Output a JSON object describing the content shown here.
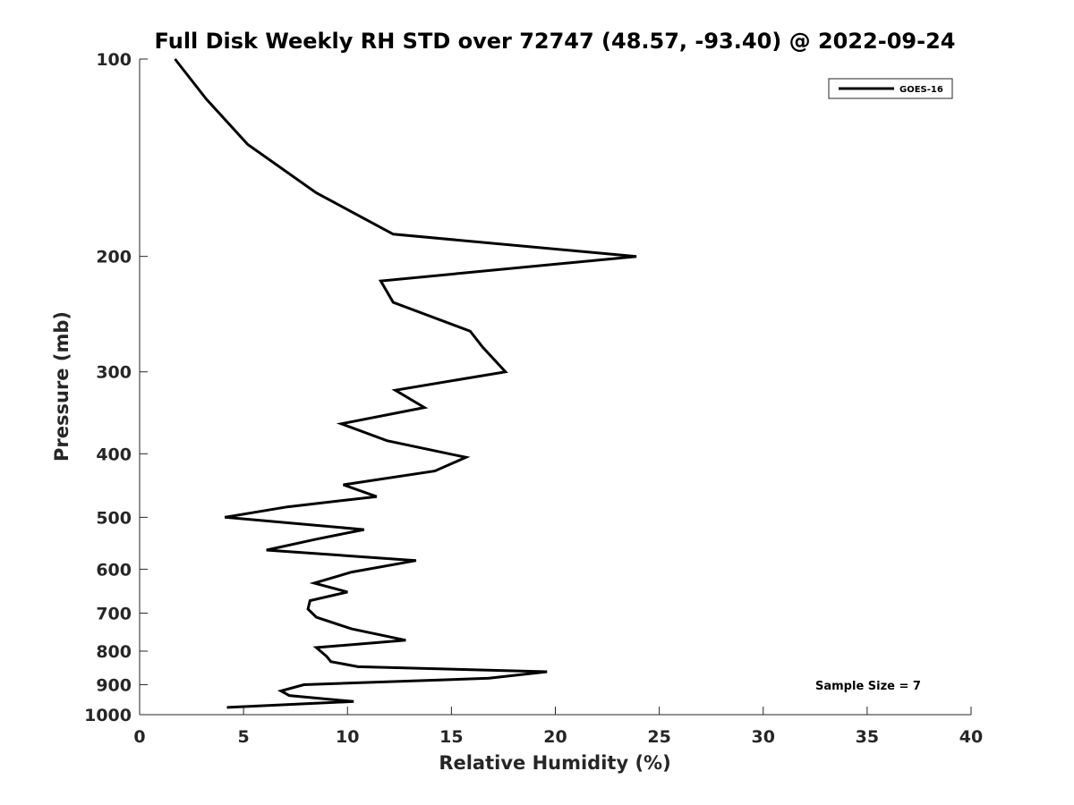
{
  "chart_data": {
    "type": "line",
    "title": "Full Disk Weekly RH STD over 72747 (48.57, -93.40) @ 2022-09-24",
    "xlabel": "Relative Humidity (%)",
    "ylabel": "Pressure (mb)",
    "xlim": [
      0,
      40
    ],
    "ylim": [
      100,
      1000
    ],
    "yscale": "log",
    "y_reversed": true,
    "x_ticks": [
      0,
      5,
      10,
      15,
      20,
      25,
      30,
      35,
      40
    ],
    "x_tick_labels": [
      "0",
      "5",
      "10",
      "15",
      "20",
      "25",
      "30",
      "35",
      "40"
    ],
    "y_ticks": [
      100,
      200,
      300,
      400,
      500,
      600,
      700,
      800,
      900,
      1000
    ],
    "y_tick_labels": [
      "100",
      "200",
      "300",
      "400",
      "500",
      "600",
      "700",
      "800",
      "900",
      "1000"
    ],
    "grid": false,
    "legend_position": "top-right",
    "series": [
      {
        "name": "GOES-16",
        "color": "#000000",
        "points": [
          [
            1.7,
            100
          ],
          [
            3.2,
            115
          ],
          [
            5.2,
            135
          ],
          [
            8.5,
            160
          ],
          [
            12.2,
            185
          ],
          [
            23.9,
            200
          ],
          [
            11.6,
            218
          ],
          [
            12.2,
            235
          ],
          [
            15.9,
            260
          ],
          [
            16.5,
            275
          ],
          [
            17.6,
            300
          ],
          [
            12.3,
            320
          ],
          [
            13.7,
            340
          ],
          [
            9.7,
            360
          ],
          [
            11.9,
            382
          ],
          [
            15.7,
            405
          ],
          [
            14.2,
            425
          ],
          [
            9.8,
            446
          ],
          [
            11.4,
            465
          ],
          [
            7.1,
            482
          ],
          [
            4.1,
            500
          ],
          [
            10.8,
            522
          ],
          [
            8.5,
            540
          ],
          [
            6.1,
            561
          ],
          [
            13.3,
            582
          ],
          [
            10.2,
            606
          ],
          [
            8.4,
            630
          ],
          [
            10.0,
            650
          ],
          [
            8.2,
            670
          ],
          [
            8.1,
            690
          ],
          [
            8.5,
            710
          ],
          [
            10.2,
            740
          ],
          [
            12.8,
            770
          ],
          [
            8.5,
            790
          ],
          [
            9.0,
            815
          ],
          [
            9.2,
            830
          ],
          [
            10.5,
            845
          ],
          [
            19.6,
            860
          ],
          [
            16.8,
            880
          ],
          [
            7.9,
            900
          ],
          [
            6.8,
            920
          ],
          [
            7.2,
            935
          ],
          [
            10.3,
            955
          ],
          [
            4.2,
            975
          ]
        ]
      }
    ],
    "annotations": [
      "Sample Size = 7"
    ]
  }
}
